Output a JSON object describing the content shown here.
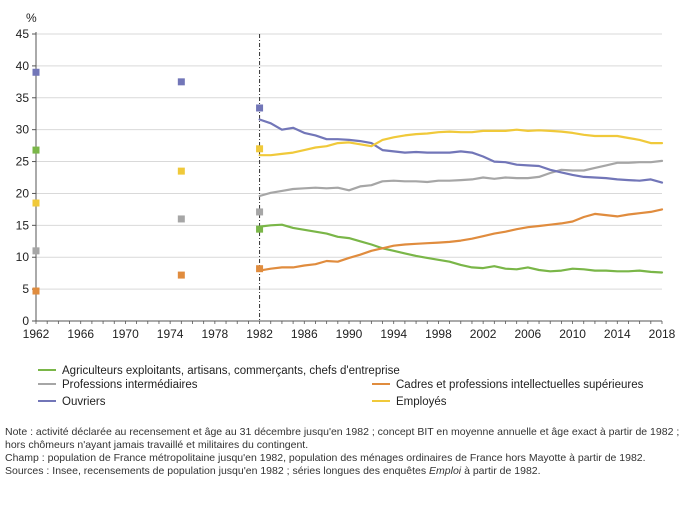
{
  "chart_data": {
    "type": "line",
    "ylabel": "%",
    "ylim": [
      0,
      45
    ],
    "yticks": [
      "0",
      "5",
      "10",
      "15",
      "20",
      "25",
      "30",
      "35",
      "40",
      "45"
    ],
    "xlim": [
      1962,
      2018
    ],
    "xticks": [
      "1962",
      "1966",
      "1970",
      "1974",
      "1978",
      "1982",
      "1986",
      "1990",
      "1994",
      "1998",
      "2002",
      "2006",
      "2010",
      "2014",
      "2018"
    ],
    "break_at": 1982,
    "x": [
      1982,
      1983,
      1984,
      1985,
      1986,
      1987,
      1988,
      1989,
      1990,
      1991,
      1992,
      1993,
      1994,
      1995,
      1996,
      1997,
      1998,
      1999,
      2000,
      2001,
      2002,
      2003,
      2004,
      2005,
      2006,
      2007,
      2008,
      2009,
      2010,
      2011,
      2012,
      2013,
      2014,
      2015,
      2016,
      2017,
      2018
    ],
    "census_years": [
      1962,
      1975,
      1982
    ],
    "series": [
      {
        "key": "agri",
        "name": "Agriculteurs exploitants, artisans, commerçants, chefs d'entreprise",
        "color": "#7ab648",
        "census": [
          26.8,
          null,
          14.4
        ],
        "values": [
          14.8,
          15.0,
          15.1,
          14.6,
          14.3,
          14.0,
          13.7,
          13.2,
          13.0,
          12.5,
          12.0,
          11.4,
          11.0,
          10.6,
          10.2,
          9.9,
          9.6,
          9.3,
          8.8,
          8.4,
          8.3,
          8.6,
          8.2,
          8.1,
          8.4,
          8.0,
          7.8,
          7.9,
          8.2,
          8.1,
          7.9,
          7.9,
          7.8,
          7.8,
          7.9,
          7.7,
          7.6
        ]
      },
      {
        "key": "prof",
        "name": "Professions intermédiaires",
        "color": "#a6a6a6",
        "census": [
          11.0,
          16.0,
          17.1
        ],
        "values": [
          19.6,
          20.1,
          20.4,
          20.7,
          20.8,
          20.9,
          20.8,
          20.9,
          20.5,
          21.1,
          21.3,
          21.9,
          22.0,
          21.9,
          21.9,
          21.8,
          22.0,
          22.0,
          22.1,
          22.2,
          22.5,
          22.3,
          22.5,
          22.4,
          22.4,
          22.6,
          23.2,
          23.7,
          23.6,
          23.6,
          24.0,
          24.4,
          24.8,
          24.8,
          24.9,
          24.9,
          25.1
        ]
      },
      {
        "key": "ouvr",
        "name": "Ouvriers",
        "color": "#7276b8",
        "census": [
          39.0,
          37.5,
          33.4
        ],
        "values": [
          31.6,
          31.0,
          30.0,
          30.3,
          29.5,
          29.1,
          28.5,
          28.5,
          28.4,
          28.2,
          27.9,
          26.8,
          26.6,
          26.4,
          26.5,
          26.4,
          26.4,
          26.4,
          26.6,
          26.4,
          25.8,
          25.0,
          24.9,
          24.5,
          24.4,
          24.3,
          23.7,
          23.3,
          22.9,
          22.6,
          22.5,
          22.4,
          22.2,
          22.1,
          22.0,
          22.2,
          21.7
        ]
      },
      {
        "key": "cadr",
        "name": "Cadres et professions intellectuelles supérieures",
        "color": "#e08c3e",
        "census": [
          4.7,
          7.2,
          8.2
        ],
        "values": [
          7.9,
          8.2,
          8.4,
          8.4,
          8.7,
          8.9,
          9.4,
          9.3,
          9.9,
          10.4,
          11.0,
          11.4,
          11.8,
          12.0,
          12.1,
          12.2,
          12.3,
          12.4,
          12.6,
          12.9,
          13.3,
          13.7,
          14.0,
          14.4,
          14.7,
          14.9,
          15.1,
          15.3,
          15.6,
          16.3,
          16.8,
          16.6,
          16.4,
          16.7,
          16.9,
          17.1,
          17.5
        ]
      },
      {
        "key": "empl",
        "name": "Employés",
        "color": "#f0c93a",
        "census": [
          18.5,
          23.5,
          27.0
        ],
        "values": [
          26.0,
          26.0,
          26.2,
          26.4,
          26.8,
          27.2,
          27.4,
          27.9,
          28.0,
          27.7,
          27.4,
          28.4,
          28.8,
          29.1,
          29.3,
          29.4,
          29.6,
          29.7,
          29.6,
          29.6,
          29.8,
          29.8,
          29.8,
          30.0,
          29.8,
          29.9,
          29.8,
          29.7,
          29.5,
          29.2,
          29.0,
          29.0,
          29.0,
          28.7,
          28.4,
          27.9,
          27.9
        ]
      }
    ]
  },
  "legend": {
    "agri": "Agriculteurs exploitants, artisans, commerçants, chefs d'entreprise",
    "prof": "Professions intermédiaires",
    "cadr": "Cadres et professions intellectuelles supérieures",
    "ouvr": "Ouvriers",
    "empl": "Employés"
  },
  "notes": {
    "line1": "Note : activité déclarée au recensement et âge au 31 décembre jusqu'en 1982 ; concept BIT en moyenne annuelle et âge exact à partir de 1982 ;",
    "line2": "hors chômeurs n'ayant jamais travaillé et militaires du contingent.",
    "line3": "Champ : population de France métropolitaine jusqu'en 1982, population des ménages ordinaires de France hors Mayotte à partir de 1982.",
    "line4_start": "Sources : Insee, recensements de population jusqu'en 1982 ; séries longues des enquêtes",
    "line4_italic": "Emploi",
    "line4_end": "à partir de 1982."
  },
  "colors": {
    "axis": "#555555",
    "grid": "#d9d9d9",
    "break_line": "#333333"
  }
}
